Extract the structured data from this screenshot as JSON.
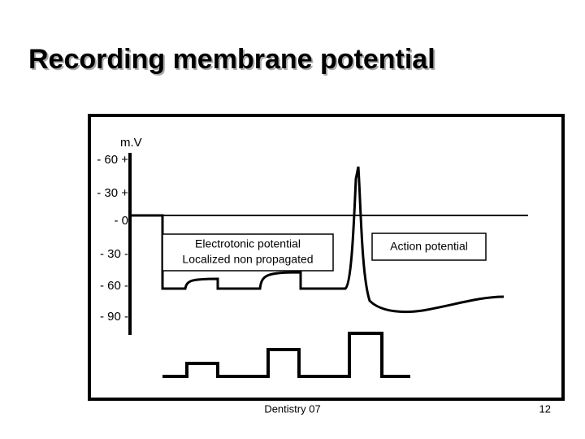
{
  "header": {
    "title": "Recording membrane potential"
  },
  "axis": {
    "unit": "m.V",
    "ticks": [
      "- 60 +",
      "- 30 +",
      "- 0",
      "- 30 -",
      "- 60 -",
      "- 90 -"
    ]
  },
  "labels": {
    "electrotonic": [
      "Electrotonic potential",
      "Localized non propagated"
    ],
    "action": "Action potential"
  },
  "footer": {
    "left": "Dentistry 07",
    "page": "12"
  }
}
